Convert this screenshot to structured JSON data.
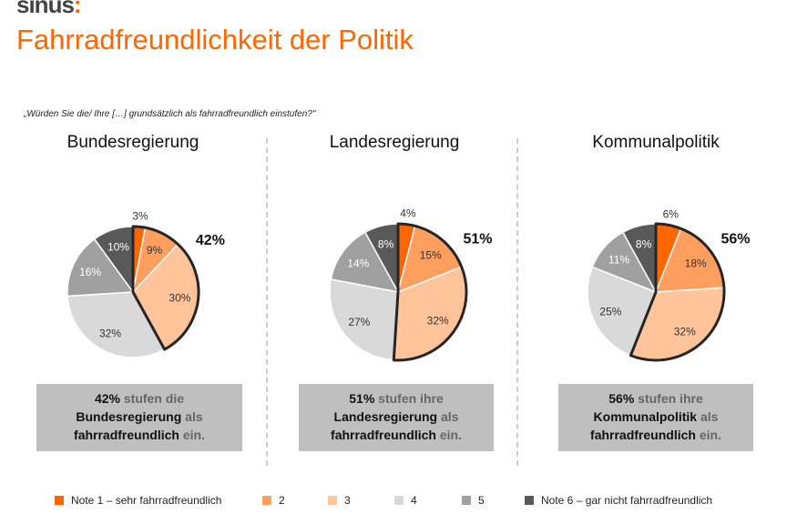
{
  "logo": "sinus",
  "title": "Fahrradfreundlichkeit der Politik",
  "question": "„Würden Sie die/ Ihre […] grundsätzlich als fahrradfreundlich einstufen?\"",
  "colors": [
    "#ff6600",
    "#ff9f5f",
    "#ffc49a",
    "#d9d9d9",
    "#a0a0a0",
    "#595959"
  ],
  "chart_data": [
    {
      "type": "pie",
      "title": "Bundesregierung",
      "values": [
        3,
        9,
        30,
        32,
        16,
        10
      ],
      "highlight_label": "42%",
      "summary": {
        "pct": "42%",
        "t1": " stufen die",
        "k2": "Bundesregierung",
        "t2": " als",
        "k3": "fahrradfreundlich",
        "t3": " ein."
      }
    },
    {
      "type": "pie",
      "title": "Landesregierung",
      "values": [
        4,
        15,
        32,
        27,
        14,
        8
      ],
      "highlight_label": "51%",
      "summary": {
        "pct": "51%",
        "t1": " stufen ihre",
        "k2": "Landesregierung",
        "t2": " als",
        "k3": "fahrradfreundlich",
        "t3": " ein."
      }
    },
    {
      "type": "pie",
      "title": "Kommunalpolitik",
      "values": [
        6,
        18,
        32,
        25,
        11,
        8
      ],
      "highlight_label": "56%",
      "summary": {
        "pct": "56%",
        "t1": " stufen ihre",
        "k2": "Kommunalpolitik",
        "t2": " als",
        "k3": "fahrradfreundlich",
        "t3": " ein."
      }
    }
  ],
  "legend": [
    "Note 1 – sehr fahrradfreundlich",
    "2",
    "3",
    "4",
    "5",
    "Note 6 – gar nicht fahrradfreundlich"
  ]
}
